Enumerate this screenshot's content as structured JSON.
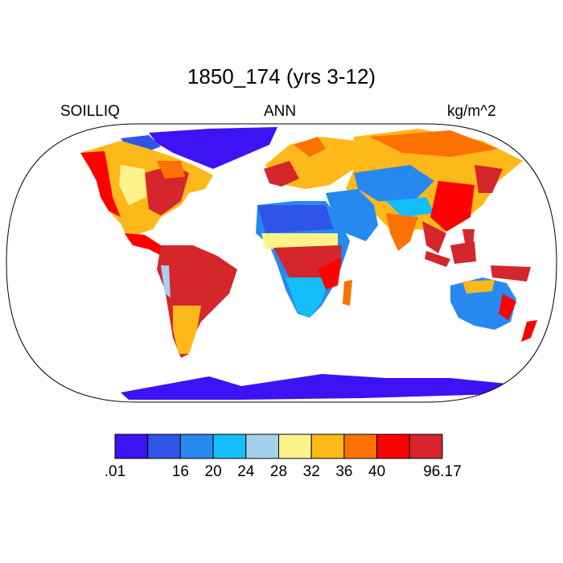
{
  "title": "1850_174 (yrs 3-12)",
  "left_label": "SOILLIQ",
  "center_label": "ANN",
  "right_label": "kg/m^2",
  "legend": {
    "colors": [
      "#3d12f5",
      "#2f55e8",
      "#2789f0",
      "#15bdf9",
      "#a3d2ee",
      "#fef38a",
      "#fdb819",
      "#fb7200",
      "#fd0000",
      "#d4262b"
    ],
    "labels": [
      ".01",
      "",
      "16",
      "20",
      "24",
      "28",
      "32",
      "36",
      "40",
      "",
      "96.17"
    ]
  }
}
